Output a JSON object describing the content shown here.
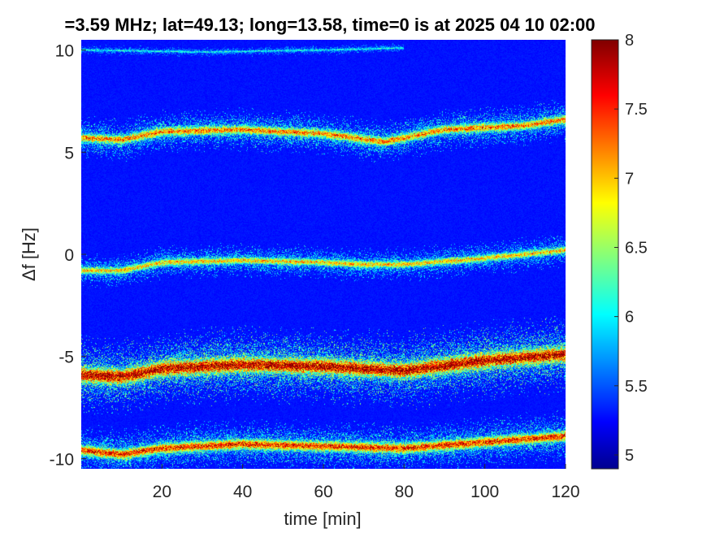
{
  "chart_data": {
    "type": "heatmap",
    "title": "=3.59 MHz;  lat=49.13; long=13.58, time=0 is at 2025 04 10 02:00",
    "xlabel": "time [min]",
    "ylabel": "Δf [Hz]",
    "xlim": [
      0,
      120
    ],
    "ylim": [
      -10.5,
      10.5
    ],
    "xticks": [
      20,
      40,
      60,
      80,
      100,
      120
    ],
    "xtick_labels": [
      "20",
      "40",
      "60",
      "80",
      "100",
      "120"
    ],
    "yticks": [
      -10,
      -5,
      0,
      5,
      10
    ],
    "ytick_labels": [
      "-10",
      "-5",
      "0",
      "5",
      "10"
    ],
    "colormap": "jet",
    "colorbar": {
      "range": [
        4.9,
        8.0
      ],
      "ticks": [
        5,
        5.5,
        6,
        6.5,
        7,
        7.5,
        8
      ],
      "tick_labels": [
        "5",
        "5.5",
        "6",
        "6.5",
        "7",
        "7.5",
        "8"
      ]
    },
    "background_level": 4.9,
    "traces": [
      {
        "points": [
          [
            0,
            10.0
          ],
          [
            30,
            9.9
          ],
          [
            60,
            10.0
          ],
          [
            80,
            10.1
          ]
        ],
        "width": 0.12,
        "peak": 5.6,
        "spread": 0.5
      },
      {
        "points": [
          [
            0,
            5.7
          ],
          [
            10,
            5.6
          ],
          [
            20,
            6.0
          ],
          [
            40,
            6.1
          ],
          [
            60,
            5.9
          ],
          [
            75,
            5.5
          ],
          [
            90,
            6.1
          ],
          [
            110,
            6.3
          ],
          [
            120,
            6.6
          ]
        ],
        "width": 0.5,
        "peak": 6.9,
        "spread": 1.0
      },
      {
        "points": [
          [
            0,
            -0.8
          ],
          [
            10,
            -0.8
          ],
          [
            20,
            -0.4
          ],
          [
            40,
            -0.3
          ],
          [
            60,
            -0.4
          ],
          [
            70,
            -0.5
          ],
          [
            80,
            -0.5
          ],
          [
            100,
            -0.2
          ],
          [
            120,
            0.2
          ]
        ],
        "width": 0.4,
        "peak": 6.6,
        "spread": 0.9
      },
      {
        "points": [
          [
            0,
            -5.9
          ],
          [
            10,
            -6.0
          ],
          [
            20,
            -5.6
          ],
          [
            40,
            -5.4
          ],
          [
            60,
            -5.5
          ],
          [
            80,
            -5.7
          ],
          [
            100,
            -5.2
          ],
          [
            120,
            -4.9
          ]
        ],
        "width": 0.9,
        "peak": 7.6,
        "spread": 1.3
      },
      {
        "points": [
          [
            0,
            -9.6
          ],
          [
            10,
            -9.8
          ],
          [
            20,
            -9.5
          ],
          [
            40,
            -9.3
          ],
          [
            60,
            -9.4
          ],
          [
            80,
            -9.5
          ],
          [
            100,
            -9.2
          ],
          [
            120,
            -8.9
          ]
        ],
        "width": 0.6,
        "peak": 7.3,
        "spread": 1.0
      }
    ]
  }
}
